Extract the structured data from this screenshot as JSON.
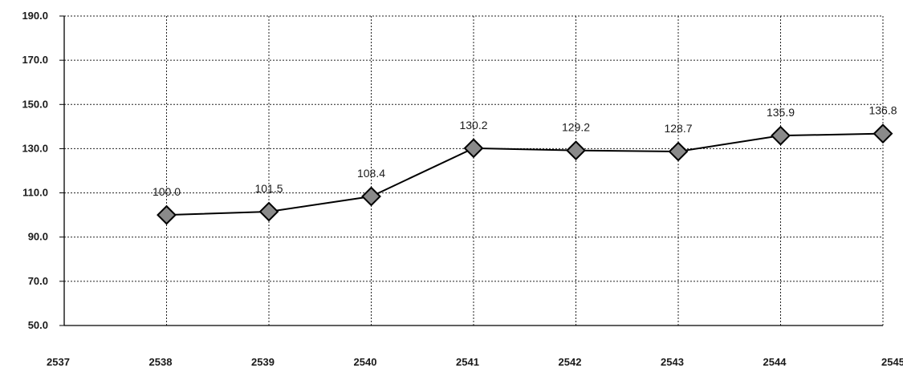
{
  "chart_data": {
    "type": "line",
    "title": "",
    "xlabel": "",
    "ylabel": "",
    "x_ticks": [
      "2537",
      "2538",
      "2539",
      "2540",
      "2541",
      "2542",
      "2543",
      "2544",
      "2545"
    ],
    "y_ticks": [
      "190.0",
      "170.0",
      "150.0",
      "130.0",
      "110.0",
      "90.0",
      "70.0",
      "50.0"
    ],
    "ylim": [
      50,
      190
    ],
    "grid": true,
    "legend": "none",
    "series": [
      {
        "x": [
          "2538",
          "2539",
          "2540",
          "2541",
          "2542",
          "2543",
          "2544",
          "2545"
        ],
        "values": [
          100.0,
          101.5,
          108.4,
          130.2,
          129.2,
          128.7,
          135.9,
          136.8
        ],
        "labels": [
          "100.0",
          "101.5",
          "108.4",
          "130.2",
          "129.2",
          "128.7",
          "135.9",
          "136.8"
        ],
        "color": "#000000",
        "marker": "diamond"
      }
    ]
  }
}
